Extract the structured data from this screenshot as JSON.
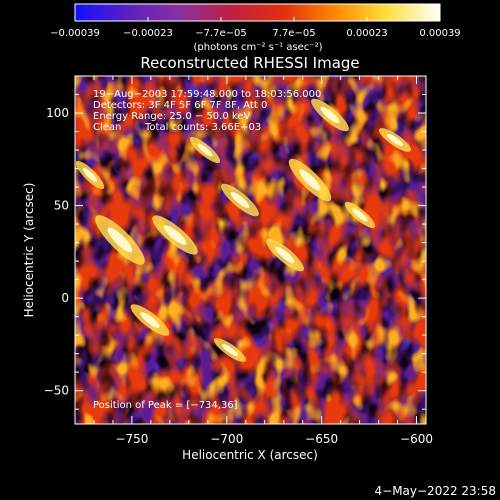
{
  "chart_data": {
    "type": "heatmap",
    "title": "Reconstructed RHESSI Image",
    "xlabel": "Heliocentric X (arcsec)",
    "ylabel": "Heliocentric Y (arcsec)",
    "xlim": [
      -780,
      -595
    ],
    "ylim": [
      -68,
      120
    ],
    "x_ticks": [
      -750,
      -700,
      -650,
      -600
    ],
    "x_tick_labels": [
      "−750",
      "−700",
      "−650",
      "−600"
    ],
    "y_ticks": [
      -50,
      0,
      50,
      100
    ],
    "y_tick_labels": [
      "−50",
      "0",
      "50",
      "100"
    ],
    "colorbar": {
      "range": [
        -0.00039,
        0.00039
      ],
      "tick_labels": [
        "−0.00039",
        "−0.00023",
        "−7.7e−05",
        "7.7e−05",
        "0.00023",
        "0.00039"
      ],
      "unit_text": "(photons cm⁻² s⁻¹ asec⁻²)",
      "colors": [
        "#1010ff",
        "#5a20c0",
        "#8a30a0",
        "#c02040",
        "#e03010",
        "#ff8a00",
        "#ffe040",
        "#ffffff"
      ]
    },
    "annotations": {
      "time": "19−Aug−2003 17:59:48.000 to 18:03:56.000",
      "detectors": "Detectors: 3F 4F 5F 6F 7F 8F, Att 0",
      "energy": "Energy Range: 25.0 − 50.0 keV",
      "method": "Clean",
      "counts": "Total counts: 3.66E+03",
      "peak": "Position of Peak = [−734,36]"
    },
    "peak": [
      -734,
      36
    ],
    "grid": false
  },
  "footer": {
    "date": "4−May−2022 23:58"
  }
}
